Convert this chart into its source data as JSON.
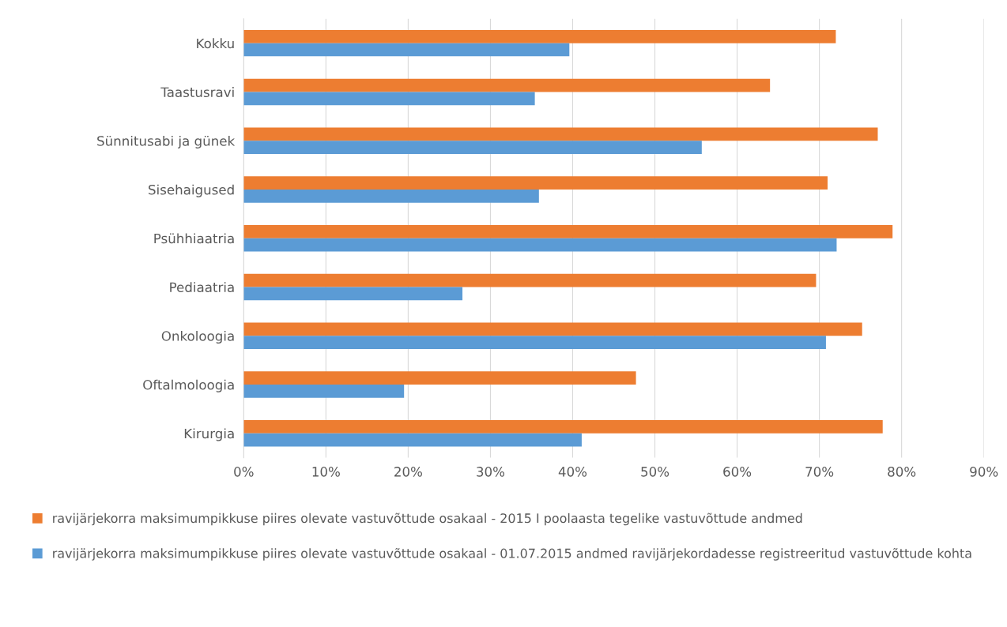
{
  "chart_data": {
    "type": "bar",
    "orientation": "horizontal",
    "categories": [
      "Kokku",
      "Taastusravi",
      "Sünnitusabi ja günek",
      "Sisehaigused",
      "Psühhiaatria",
      "Pediaatria",
      "Onkoloogia",
      "Oftalmoloogia",
      "Kirurgia"
    ],
    "series": [
      {
        "name": "ravijärjekorra maksimumpikkuse piires olevate vastuvõttude osakaal - 2015 I poolaasta tegelike vastuvõttude andmed",
        "color": "#ed7d31",
        "values": [
          72.0,
          64.0,
          77.1,
          71.0,
          78.9,
          69.6,
          75.2,
          47.7,
          77.7
        ]
      },
      {
        "name": "ravijärjekorra maksimumpikkuse piires olevate vastuvõttude osakaal - 01.07.2015 andmed ravijärjekordadesse registreeritud vastuvõttude kohta",
        "color": "#5b9bd5",
        "values": [
          39.6,
          35.4,
          55.7,
          35.9,
          72.1,
          26.6,
          70.8,
          19.5,
          41.1
        ]
      }
    ],
    "xlim": [
      0,
      90
    ],
    "xticks": [
      {
        "value": 0,
        "label": "0%"
      },
      {
        "value": 10,
        "label": "10%"
      },
      {
        "value": 20,
        "label": "20%"
      },
      {
        "value": 30,
        "label": "30%"
      },
      {
        "value": 40,
        "label": "40%"
      },
      {
        "value": 50,
        "label": "50%"
      },
      {
        "value": 60,
        "label": "60%"
      },
      {
        "value": 70,
        "label": "70%"
      },
      {
        "value": 80,
        "label": "80%"
      },
      {
        "value": 90,
        "label": "90%"
      }
    ],
    "grid": "x",
    "legend": "bottom"
  }
}
